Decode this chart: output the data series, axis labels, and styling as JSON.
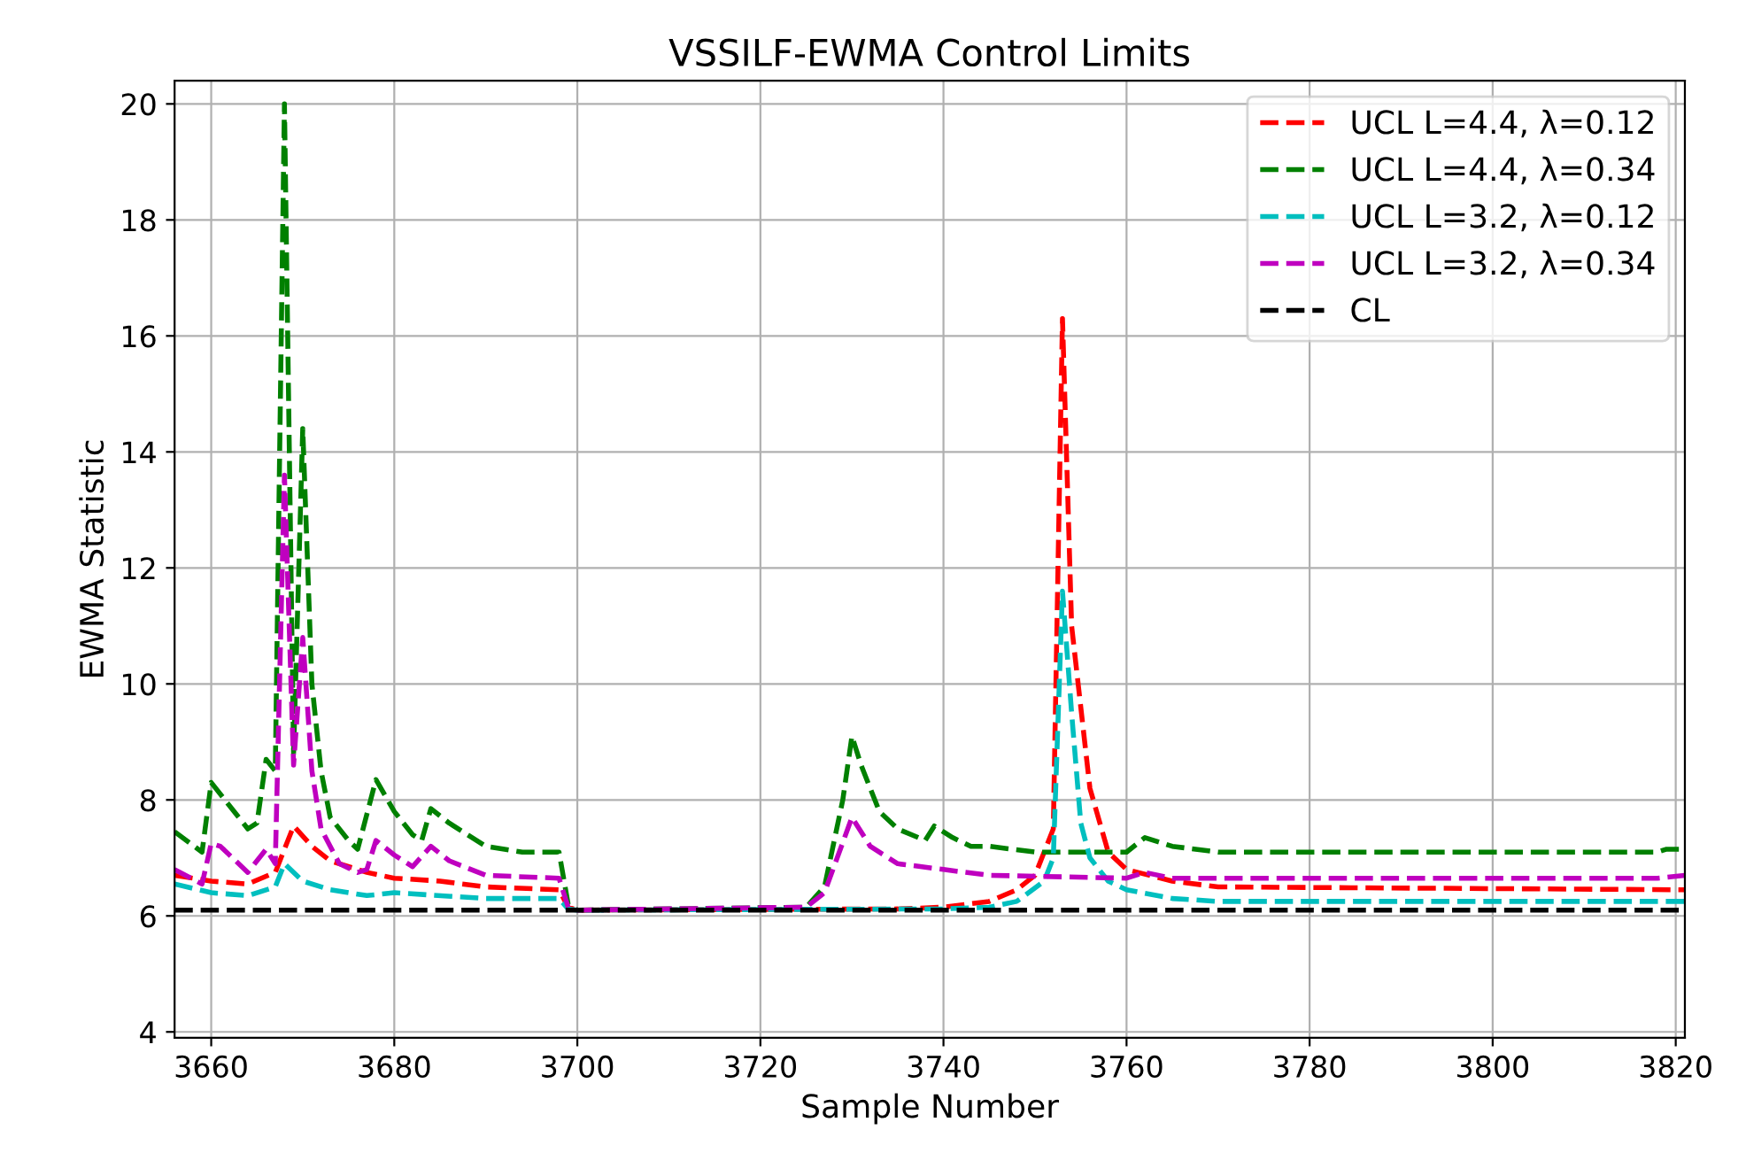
{
  "chart_data": {
    "type": "line",
    "title": "VSSILF-EWMA Control Limits",
    "xlabel": "Sample Number",
    "ylabel": "EWMA Statistic",
    "xlim": [
      3656,
      3821
    ],
    "ylim": [
      3.9,
      20.4
    ],
    "xticks": [
      3660,
      3680,
      3700,
      3720,
      3740,
      3760,
      3780,
      3800,
      3820
    ],
    "yticks": [
      4,
      6,
      8,
      10,
      12,
      14,
      16,
      18,
      20
    ],
    "grid": true,
    "legend": "top right",
    "line_style": "dashed",
    "marker": "none",
    "series": [
      {
        "name": "UCL L=4.4, λ=0.12",
        "color": "#ff0000",
        "x": [
          3656,
          3660,
          3664,
          3667,
          3669,
          3671,
          3673,
          3677,
          3680,
          3685,
          3690,
          3698,
          3699,
          3700,
          3735,
          3740,
          3745,
          3748,
          3750,
          3752,
          3753,
          3754,
          3756,
          3758,
          3760,
          3765,
          3770,
          3821
        ],
        "values": [
          6.7,
          6.6,
          6.55,
          6.75,
          7.55,
          7.2,
          6.95,
          6.75,
          6.65,
          6.6,
          6.5,
          6.45,
          6.15,
          6.1,
          6.12,
          6.15,
          6.25,
          6.45,
          6.7,
          7.5,
          16.3,
          11,
          8.2,
          7.1,
          6.8,
          6.6,
          6.5,
          6.45
        ]
      },
      {
        "name": "UCL L=4.4, λ=0.34",
        "color": "#008000",
        "x": [
          3656,
          3659,
          3660,
          3664,
          3665,
          3666,
          3667,
          3668,
          3669,
          3670,
          3671,
          3672,
          3673,
          3675,
          3676,
          3678,
          3680,
          3682,
          3683,
          3684,
          3686,
          3690,
          3694,
          3698,
          3699,
          3700,
          3725,
          3727,
          3729,
          3730,
          3731,
          3733,
          3735,
          3738,
          3739,
          3741,
          3743,
          3745,
          3750,
          3755,
          3760,
          3762,
          3765,
          3770,
          3818,
          3819,
          3821
        ],
        "values": [
          7.45,
          7.1,
          8.3,
          7.5,
          7.6,
          8.7,
          8.5,
          20.0,
          8.8,
          14.4,
          10,
          8.5,
          7.7,
          7.3,
          7.15,
          8.35,
          7.8,
          7.4,
          7.3,
          7.85,
          7.6,
          7.2,
          7.1,
          7.1,
          6.2,
          6.1,
          6.15,
          6.5,
          8.0,
          9.1,
          8.6,
          7.8,
          7.5,
          7.3,
          7.55,
          7.35,
          7.2,
          7.2,
          7.1,
          7.1,
          7.1,
          7.35,
          7.2,
          7.1,
          7.1,
          7.15,
          7.15
        ]
      },
      {
        "name": "UCL L=3.2, λ=0.12",
        "color": "#00bfbf",
        "x": [
          3656,
          3660,
          3664,
          3667,
          3668,
          3670,
          3673,
          3677,
          3680,
          3690,
          3698,
          3699,
          3700,
          3740,
          3745,
          3748,
          3751,
          3752,
          3753,
          3754,
          3755,
          3756,
          3758,
          3760,
          3765,
          3770,
          3821
        ],
        "values": [
          6.55,
          6.4,
          6.35,
          6.5,
          6.9,
          6.6,
          6.45,
          6.35,
          6.4,
          6.3,
          6.3,
          6.12,
          6.1,
          6.12,
          6.15,
          6.25,
          6.6,
          7.0,
          11.6,
          9.5,
          7.6,
          7.0,
          6.6,
          6.45,
          6.3,
          6.25,
          6.25
        ]
      },
      {
        "name": "UCL L=3.2, λ=0.34",
        "color": "#bf00bf",
        "x": [
          3656,
          3659,
          3660,
          3661,
          3664,
          3666,
          3667,
          3668,
          3669,
          3670,
          3671,
          3672,
          3674,
          3676,
          3677,
          3678,
          3680,
          3682,
          3684,
          3686,
          3690,
          3698,
          3699,
          3700,
          3725,
          3727,
          3730,
          3732,
          3735,
          3740,
          3745,
          3760,
          3762,
          3765,
          3818,
          3821
        ],
        "values": [
          6.8,
          6.55,
          7.25,
          7.2,
          6.75,
          7.15,
          6.9,
          13.6,
          8.6,
          10.8,
          8.5,
          7.5,
          6.9,
          6.75,
          6.8,
          7.3,
          7.05,
          6.85,
          7.2,
          6.95,
          6.7,
          6.65,
          6.15,
          6.1,
          6.15,
          6.4,
          7.7,
          7.2,
          6.9,
          6.8,
          6.7,
          6.65,
          6.75,
          6.65,
          6.65,
          6.7
        ]
      },
      {
        "name": "CL",
        "color": "#000000",
        "x": [
          3656,
          3821
        ],
        "values": [
          6.1,
          6.1
        ]
      }
    ]
  }
}
